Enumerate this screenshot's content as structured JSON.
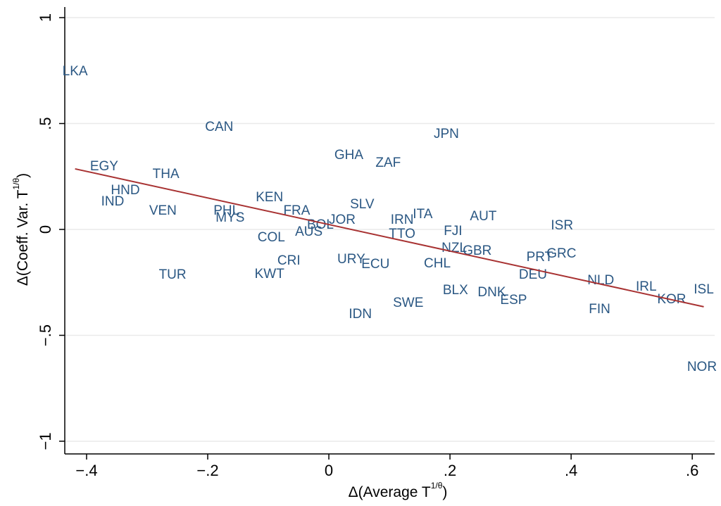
{
  "chart_data": {
    "type": "scatter",
    "xlabel": {
      "text": "Δ(Average T",
      "sup": "1/θ",
      "close": ")"
    },
    "ylabel": {
      "text": "Δ(Coeff. Var. T",
      "sup": "1/θ",
      "close": ")"
    },
    "xlim": [
      -0.436,
      0.637
    ],
    "ylim": [
      -1.06,
      1.05
    ],
    "xticks": [
      {
        "value": -0.4,
        "label": "−.4"
      },
      {
        "value": -0.2,
        "label": "−.2"
      },
      0,
      {
        "value": 0.2,
        "label": ".2"
      },
      {
        "value": 0.4,
        "label": ".4"
      },
      {
        "value": 0.6,
        "label": ".6"
      }
    ],
    "yticks": [
      {
        "value": -1,
        "label": "−1"
      },
      {
        "value": -0.5,
        "label": "−.5"
      },
      0,
      {
        "value": 0.5,
        "label": ".5"
      },
      1
    ],
    "grid": true,
    "color": "#2a5783",
    "point_labels": [
      "LKA",
      "CAN",
      "JPN",
      "EGY",
      "THA",
      "GHA",
      "ZAF",
      "HND",
      "IND",
      "VEN",
      "KEN",
      "SLV",
      "FRA",
      "PHL",
      "MYS",
      "ITA",
      "AUT",
      "IRN",
      "JOR",
      "BOL",
      "ISR",
      "AUS",
      "FJI",
      "TTO",
      "COL",
      "NZL",
      "GBR",
      "GRC",
      "PRT",
      "CRI",
      "URY",
      "ECU",
      "CHL",
      "DEU",
      "TUR",
      "KWT",
      "NLD",
      "IRL",
      "ISL",
      "BLX",
      "DNK",
      "KOR",
      "ESP",
      "SWE",
      "FIN",
      "IDN",
      "NOR"
    ],
    "x": [
      -0.419,
      -0.181,
      0.194,
      -0.371,
      -0.269,
      0.033,
      0.098,
      -0.336,
      -0.357,
      -0.274,
      -0.098,
      0.055,
      -0.053,
      -0.169,
      -0.163,
      0.155,
      0.255,
      0.121,
      0.022,
      -0.014,
      0.385,
      -0.033,
      0.205,
      0.121,
      -0.095,
      0.207,
      0.245,
      0.384,
      0.348,
      -0.066,
      0.037,
      0.077,
      0.179,
      0.337,
      -0.258,
      -0.098,
      0.449,
      0.524,
      0.619,
      0.209,
      0.269,
      0.566,
      0.305,
      0.131,
      0.447,
      0.052,
      0.616
    ],
    "values": [
      0.744,
      0.482,
      0.449,
      0.296,
      0.259,
      0.349,
      0.312,
      0.183,
      0.13,
      0.086,
      0.15,
      0.116,
      0.086,
      0.086,
      0.053,
      0.07,
      0.06,
      0.043,
      0.043,
      0.02,
      0.017,
      -0.013,
      -0.01,
      -0.023,
      -0.04,
      -0.09,
      -0.103,
      -0.116,
      -0.133,
      -0.15,
      -0.143,
      -0.166,
      -0.163,
      -0.216,
      -0.216,
      -0.213,
      -0.243,
      -0.272,
      -0.286,
      -0.289,
      -0.299,
      -0.332,
      -0.336,
      -0.349,
      -0.379,
      -0.402,
      -0.651
    ],
    "fit": {
      "x": [
        -0.419,
        0.619
      ],
      "values": [
        0.286,
        -0.365
      ],
      "color": "#a83232"
    }
  }
}
